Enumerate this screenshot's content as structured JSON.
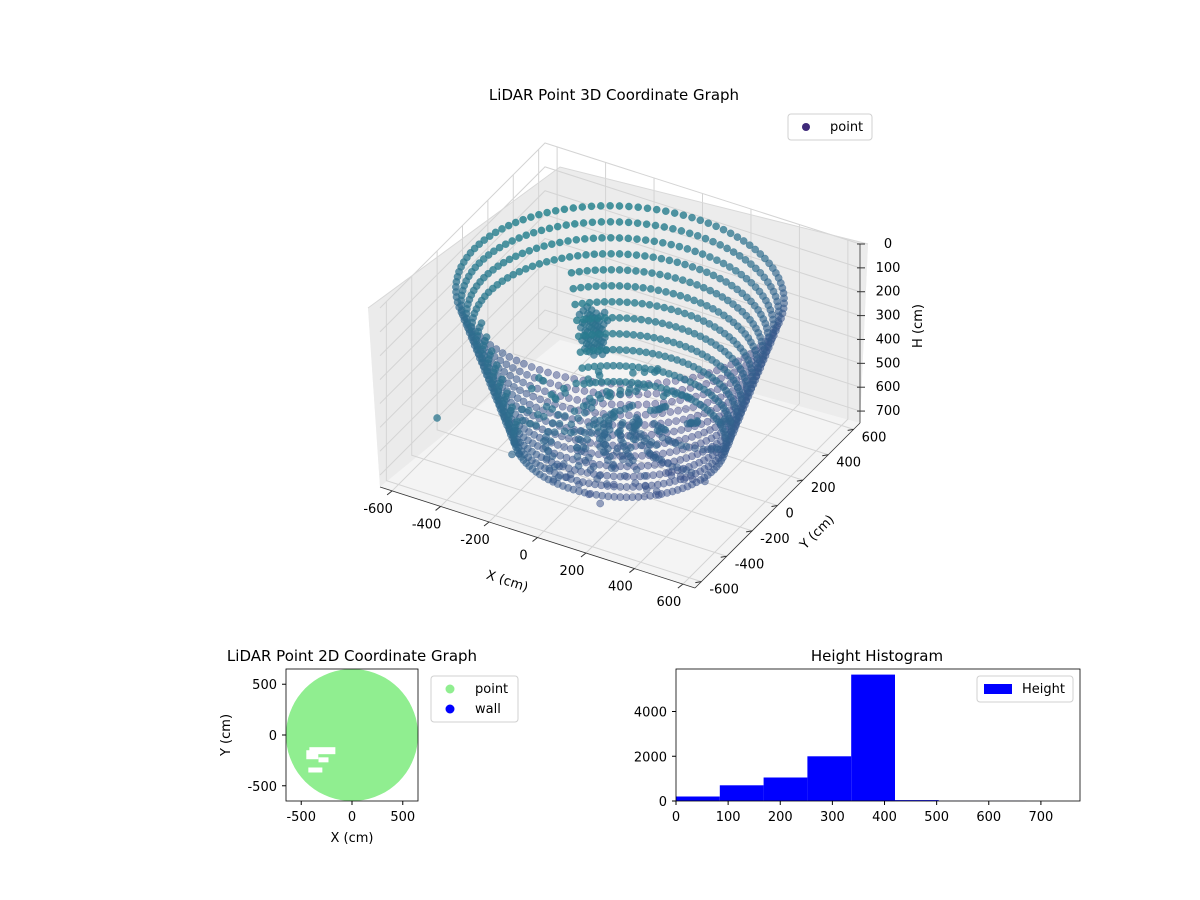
{
  "chart_data": [
    {
      "type": "scatter3d",
      "title": "LiDAR Point 3D Coordinate Graph",
      "xlabel": "X (cm)",
      "ylabel": "Y (cm)",
      "zlabel": "H (cm)",
      "xlim": [
        -650,
        650
      ],
      "ylim": [
        -650,
        650
      ],
      "zlim": [
        0,
        750
      ],
      "z_inverted": true,
      "xticks": [
        -600,
        -400,
        -200,
        0,
        200,
        400,
        600
      ],
      "yticks": [
        -600,
        -400,
        -200,
        0,
        200,
        400,
        600
      ],
      "zticks": [
        0,
        100,
        200,
        300,
        400,
        500,
        600,
        700
      ],
      "legend": {
        "position": "top-right",
        "entries": [
          {
            "label": "point",
            "color": "#3f2a7a"
          }
        ]
      },
      "colormap": "viridis",
      "series": [
        {
          "description": "ring of points around circular wall",
          "radius_cm": 600,
          "h_range": [
            80,
            720
          ]
        },
        {
          "description": "dense cluster near center",
          "x": -200,
          "y": 150,
          "h": 380
        }
      ]
    },
    {
      "type": "scatter",
      "title": "LiDAR Point 2D Coordinate Graph",
      "xlabel": "X (cm)",
      "ylabel": "Y (cm)",
      "xlim": [
        -650,
        650
      ],
      "ylim": [
        -650,
        650
      ],
      "xticks": [
        -500,
        0,
        500
      ],
      "yticks": [
        500,
        0,
        -500
      ],
      "legend": {
        "position": "outside-right",
        "entries": [
          {
            "label": "point",
            "color": "#90ee90"
          },
          {
            "label": "wall",
            "color": "#0000ff"
          }
        ]
      }
    },
    {
      "type": "bar",
      "title": "Height Histogram",
      "xlim": [
        0,
        775
      ],
      "ylim": [
        0,
        5900
      ],
      "xticks": [
        0,
        100,
        200,
        300,
        400,
        500,
        600,
        700
      ],
      "yticks": [
        0,
        2000,
        4000
      ],
      "legend": {
        "position": "top-right",
        "entries": [
          {
            "label": "Height",
            "color": "#0000ff"
          }
        ]
      },
      "bin_edges": [
        0,
        84,
        168,
        252,
        336,
        420,
        504,
        588,
        672,
        756
      ],
      "values": [
        200,
        700,
        1050,
        2000,
        5650,
        40,
        5,
        3,
        2
      ]
    }
  ]
}
